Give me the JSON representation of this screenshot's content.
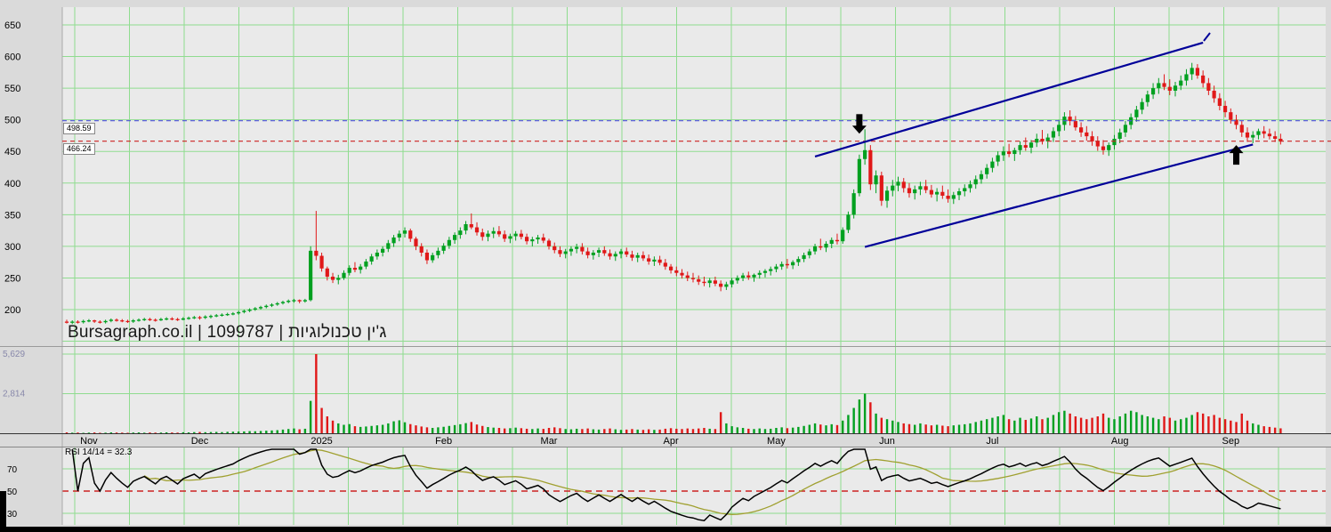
{
  "watermark": "Bursagraph.co.il | 1099787 | ג'ין טכנולוגיות",
  "colors": {
    "axis_bg": "#dadada",
    "plot_bg": "#eaeaea",
    "grid": "#8fdc8f",
    "up": "#00a020",
    "down": "#e01818",
    "vol_label": "#8888aa",
    "rsi_ma": "#a0a030",
    "rsi_mid": "#cc2222"
  },
  "price_lines": [
    {
      "label": "498.59",
      "price": 498.59,
      "color": "#5050dd"
    },
    {
      "label": "466.24",
      "price": 466.24,
      "color": "#cc2222"
    }
  ],
  "chart_data": {
    "type": "candlestick",
    "title": "",
    "price_axis": {
      "ticks": [
        650,
        600,
        550,
        500,
        450,
        400,
        350,
        300,
        250,
        200
      ],
      "ylim": [
        150,
        678
      ]
    },
    "x_labels": [
      {
        "label": "Nov",
        "index": 4
      },
      {
        "label": "Dec",
        "index": 24
      },
      {
        "label": "2025",
        "index": 46
      },
      {
        "label": "Feb",
        "index": 68
      },
      {
        "label": "Mar",
        "index": 87
      },
      {
        "label": "Apr",
        "index": 109
      },
      {
        "label": "May",
        "index": 128
      },
      {
        "label": "Jun",
        "index": 148
      },
      {
        "label": "Jul",
        "index": 167
      },
      {
        "label": "Aug",
        "index": 190
      },
      {
        "label": "Sep",
        "index": 210
      }
    ],
    "volume_axis": {
      "ticks": [
        {
          "label": "5,629",
          "value": 5629
        },
        {
          "label": "2,814",
          "value": 2814
        }
      ],
      "max": 5900
    },
    "rsi": {
      "label": "RSI 14/14 = 32.3",
      "period": 14,
      "smoothing": 14,
      "last_value": 32.3,
      "ticks": [
        70,
        50,
        30
      ],
      "midline": 50
    },
    "trend_channel": {
      "color": "#000099",
      "upper": {
        "i1": 135,
        "p1": 442,
        "i2": 205,
        "p2": 622
      },
      "lower": {
        "i1": 144,
        "p1": 299,
        "i2": 214,
        "p2": 461
      }
    },
    "arrows": [
      {
        "index": 143,
        "dir": "down",
        "tip_price": 478
      },
      {
        "index": 211,
        "dir": "up",
        "tip_price": 460
      }
    ],
    "candles": [
      [
        181,
        184,
        178,
        180
      ],
      [
        180,
        183,
        177,
        181
      ],
      [
        181,
        183,
        178,
        180
      ],
      [
        180,
        184,
        178,
        182
      ],
      [
        182,
        185,
        180,
        183
      ],
      [
        183,
        184,
        179,
        181
      ],
      [
        181,
        183,
        178,
        180
      ],
      [
        180,
        184,
        178,
        182
      ],
      [
        182,
        186,
        180,
        184
      ],
      [
        184,
        186,
        181,
        183
      ],
      [
        183,
        185,
        180,
        182
      ],
      [
        182,
        184,
        179,
        181
      ],
      [
        181,
        185,
        179,
        183
      ],
      [
        183,
        186,
        181,
        184
      ],
      [
        184,
        187,
        182,
        185
      ],
      [
        185,
        187,
        182,
        184
      ],
      [
        184,
        186,
        181,
        183
      ],
      [
        183,
        187,
        182,
        185
      ],
      [
        185,
        188,
        183,
        186
      ],
      [
        186,
        188,
        183,
        185
      ],
      [
        185,
        187,
        182,
        184
      ],
      [
        184,
        188,
        183,
        186
      ],
      [
        186,
        189,
        184,
        187
      ],
      [
        187,
        190,
        185,
        188
      ],
      [
        188,
        190,
        184,
        187
      ],
      [
        187,
        191,
        185,
        189
      ],
      [
        189,
        192,
        186,
        190
      ],
      [
        190,
        193,
        188,
        191
      ],
      [
        191,
        194,
        189,
        192
      ],
      [
        192,
        195,
        190,
        193
      ],
      [
        193,
        196,
        191,
        194
      ],
      [
        194,
        198,
        192,
        196
      ],
      [
        196,
        200,
        194,
        198
      ],
      [
        198,
        202,
        196,
        200
      ],
      [
        200,
        204,
        198,
        202
      ],
      [
        202,
        206,
        200,
        204
      ],
      [
        204,
        208,
        202,
        206
      ],
      [
        206,
        210,
        204,
        208
      ],
      [
        208,
        212,
        206,
        210
      ],
      [
        210,
        214,
        208,
        212
      ],
      [
        212,
        216,
        210,
        214
      ],
      [
        214,
        217,
        211,
        215
      ],
      [
        215,
        216,
        210,
        213
      ],
      [
        213,
        217,
        211,
        215
      ],
      [
        215,
        300,
        213,
        293
      ],
      [
        293,
        356,
        278,
        285
      ],
      [
        285,
        290,
        260,
        265
      ],
      [
        265,
        268,
        246,
        252
      ],
      [
        252,
        258,
        242,
        247
      ],
      [
        247,
        255,
        240,
        250
      ],
      [
        250,
        262,
        247,
        258
      ],
      [
        258,
        270,
        254,
        266
      ],
      [
        266,
        275,
        259,
        263
      ],
      [
        263,
        272,
        257,
        268
      ],
      [
        268,
        280,
        264,
        276
      ],
      [
        276,
        288,
        271,
        284
      ],
      [
        284,
        295,
        279,
        290
      ],
      [
        290,
        300,
        284,
        296
      ],
      [
        296,
        310,
        291,
        305
      ],
      [
        305,
        318,
        299,
        314
      ],
      [
        314,
        325,
        308,
        320
      ],
      [
        320,
        330,
        314,
        325
      ],
      [
        325,
        328,
        307,
        312
      ],
      [
        312,
        315,
        294,
        300
      ],
      [
        300,
        305,
        284,
        290
      ],
      [
        290,
        295,
        272,
        278
      ],
      [
        278,
        290,
        274,
        286
      ],
      [
        286,
        298,
        281,
        293
      ],
      [
        293,
        305,
        288,
        301
      ],
      [
        301,
        315,
        296,
        310
      ],
      [
        310,
        322,
        304,
        318
      ],
      [
        318,
        330,
        312,
        325
      ],
      [
        325,
        340,
        319,
        335
      ],
      [
        335,
        352,
        327,
        330
      ],
      [
        330,
        338,
        317,
        322
      ],
      [
        322,
        328,
        309,
        315
      ],
      [
        315,
        325,
        308,
        320
      ],
      [
        320,
        330,
        313,
        324
      ],
      [
        324,
        332,
        315,
        319
      ],
      [
        319,
        325,
        307,
        312
      ],
      [
        312,
        320,
        305,
        316
      ],
      [
        316,
        324,
        309,
        320
      ],
      [
        320,
        326,
        311,
        315
      ],
      [
        315,
        320,
        303,
        308
      ],
      [
        308,
        315,
        300,
        311
      ],
      [
        311,
        318,
        304,
        314
      ],
      [
        314,
        320,
        305,
        309
      ],
      [
        309,
        312,
        295,
        300
      ],
      [
        300,
        306,
        289,
        294
      ],
      [
        294,
        300,
        283,
        288
      ],
      [
        288,
        296,
        281,
        292
      ],
      [
        292,
        300,
        285,
        296
      ],
      [
        296,
        304,
        289,
        299
      ],
      [
        299,
        305,
        287,
        292
      ],
      [
        292,
        298,
        281,
        286
      ],
      [
        286,
        294,
        279,
        290
      ],
      [
        290,
        298,
        283,
        294
      ],
      [
        294,
        300,
        285,
        289
      ],
      [
        289,
        295,
        279,
        284
      ],
      [
        284,
        292,
        277,
        288
      ],
      [
        288,
        296,
        281,
        292
      ],
      [
        292,
        298,
        283,
        287
      ],
      [
        287,
        293,
        277,
        282
      ],
      [
        282,
        290,
        275,
        286
      ],
      [
        286,
        292,
        277,
        281
      ],
      [
        281,
        287,
        271,
        276
      ],
      [
        276,
        284,
        269,
        279
      ],
      [
        279,
        285,
        270,
        274
      ],
      [
        274,
        280,
        263,
        268
      ],
      [
        268,
        272,
        257,
        262
      ],
      [
        262,
        268,
        253,
        258
      ],
      [
        258,
        264,
        249,
        254
      ],
      [
        254,
        260,
        245,
        250
      ],
      [
        250,
        258,
        243,
        248
      ],
      [
        248,
        254,
        239,
        244
      ],
      [
        244,
        252,
        237,
        242
      ],
      [
        242,
        250,
        235,
        246
      ],
      [
        246,
        252,
        237,
        241
      ],
      [
        241,
        246,
        229,
        236
      ],
      [
        236,
        244,
        231,
        240
      ],
      [
        240,
        250,
        235,
        246
      ],
      [
        246,
        254,
        241,
        250
      ],
      [
        250,
        258,
        245,
        254
      ],
      [
        254,
        260,
        247,
        251
      ],
      [
        251,
        257,
        244,
        255
      ],
      [
        255,
        262,
        249,
        258
      ],
      [
        258,
        264,
        251,
        261
      ],
      [
        261,
        268,
        254,
        264
      ],
      [
        264,
        272,
        259,
        268
      ],
      [
        268,
        276,
        263,
        272
      ],
      [
        272,
        280,
        265,
        270
      ],
      [
        270,
        278,
        264,
        275
      ],
      [
        275,
        284,
        269,
        280
      ],
      [
        280,
        290,
        275,
        286
      ],
      [
        286,
        296,
        281,
        292
      ],
      [
        292,
        304,
        287,
        300
      ],
      [
        300,
        312,
        294,
        298
      ],
      [
        298,
        308,
        291,
        304
      ],
      [
        304,
        314,
        297,
        310
      ],
      [
        310,
        320,
        303,
        308
      ],
      [
        308,
        330,
        304,
        326
      ],
      [
        326,
        355,
        321,
        350
      ],
      [
        350,
        390,
        344,
        384
      ],
      [
        384,
        445,
        379,
        438
      ],
      [
        438,
        485,
        429,
        452
      ],
      [
        452,
        460,
        389,
        398
      ],
      [
        398,
        420,
        384,
        412
      ],
      [
        412,
        418,
        364,
        372
      ],
      [
        372,
        395,
        361,
        388
      ],
      [
        388,
        405,
        379,
        396
      ],
      [
        396,
        410,
        387,
        402
      ],
      [
        402,
        408,
        385,
        392
      ],
      [
        392,
        400,
        377,
        384
      ],
      [
        384,
        396,
        374,
        390
      ],
      [
        390,
        402,
        381,
        395
      ],
      [
        395,
        405,
        384,
        389
      ],
      [
        389,
        397,
        377,
        382
      ],
      [
        382,
        392,
        371,
        386
      ],
      [
        386,
        396,
        375,
        380
      ],
      [
        380,
        390,
        369,
        375
      ],
      [
        375,
        386,
        367,
        381
      ],
      [
        381,
        392,
        373,
        387
      ],
      [
        387,
        398,
        379,
        392
      ],
      [
        392,
        404,
        385,
        398
      ],
      [
        398,
        412,
        391,
        406
      ],
      [
        406,
        420,
        399,
        414
      ],
      [
        414,
        430,
        407,
        424
      ],
      [
        424,
        440,
        417,
        434
      ],
      [
        434,
        450,
        427,
        444
      ],
      [
        444,
        458,
        435,
        450
      ],
      [
        450,
        462,
        441,
        446
      ],
      [
        446,
        456,
        435,
        452
      ],
      [
        452,
        466,
        445,
        460
      ],
      [
        460,
        472,
        451,
        456
      ],
      [
        456,
        468,
        447,
        464
      ],
      [
        464,
        478,
        457,
        470
      ],
      [
        470,
        484,
        461,
        466
      ],
      [
        466,
        478,
        455,
        472
      ],
      [
        472,
        488,
        465,
        482
      ],
      [
        482,
        500,
        474,
        492
      ],
      [
        492,
        512,
        483,
        505
      ],
      [
        505,
        515,
        491,
        498
      ],
      [
        498,
        506,
        483,
        488
      ],
      [
        488,
        496,
        473,
        480
      ],
      [
        480,
        490,
        467,
        474
      ],
      [
        474,
        482,
        459,
        466
      ],
      [
        466,
        474,
        451,
        458
      ],
      [
        458,
        468,
        445,
        452
      ],
      [
        452,
        464,
        443,
        460
      ],
      [
        460,
        476,
        453,
        470
      ],
      [
        470,
        486,
        463,
        480
      ],
      [
        480,
        498,
        473,
        492
      ],
      [
        492,
        510,
        485,
        504
      ],
      [
        504,
        522,
        497,
        516
      ],
      [
        516,
        534,
        509,
        528
      ],
      [
        528,
        546,
        521,
        540
      ],
      [
        540,
        558,
        533,
        550
      ],
      [
        550,
        566,
        541,
        558
      ],
      [
        558,
        572,
        547,
        552
      ],
      [
        552,
        564,
        539,
        546
      ],
      [
        546,
        560,
        537,
        554
      ],
      [
        554,
        570,
        547,
        562
      ],
      [
        562,
        580,
        554,
        572
      ],
      [
        572,
        590,
        563,
        582
      ],
      [
        582,
        588,
        565,
        570
      ],
      [
        570,
        578,
        551,
        558
      ],
      [
        558,
        566,
        539,
        546
      ],
      [
        546,
        554,
        527,
        534
      ],
      [
        534,
        542,
        515,
        522
      ],
      [
        522,
        530,
        504,
        512
      ],
      [
        512,
        518,
        494,
        500
      ],
      [
        500,
        508,
        485,
        492
      ],
      [
        492,
        498,
        473,
        480
      ],
      [
        480,
        488,
        465,
        472
      ],
      [
        472,
        482,
        463,
        476
      ],
      [
        476,
        486,
        469,
        482
      ],
      [
        482,
        490,
        471,
        478
      ],
      [
        478,
        486,
        469,
        474
      ],
      [
        474,
        482,
        465,
        470
      ],
      [
        470,
        478,
        461,
        466
      ]
    ],
    "volumes": [
      60,
      40,
      50,
      30,
      45,
      55,
      35,
      40,
      60,
      50,
      45,
      35,
      50,
      60,
      40,
      55,
      45,
      50,
      65,
      55,
      45,
      70,
      60,
      80,
      90,
      75,
      85,
      95,
      80,
      100,
      110,
      120,
      130,
      150,
      140,
      160,
      180,
      200,
      220,
      260,
      300,
      340,
      280,
      320,
      2300,
      5629,
      1800,
      1200,
      900,
      700,
      600,
      650,
      500,
      450,
      480,
      520,
      560,
      600,
      700,
      850,
      920,
      780,
      650,
      560,
      480,
      420,
      380,
      420,
      460,
      520,
      580,
      640,
      720,
      800,
      620,
      520,
      440,
      400,
      380,
      340,
      360,
      400,
      360,
      320,
      300,
      340,
      310,
      380,
      420,
      360,
      300,
      280,
      320,
      300,
      340,
      280,
      260,
      300,
      340,
      280,
      240,
      260,
      300,
      260,
      240,
      280,
      240,
      260,
      320,
      360,
      320,
      300,
      340,
      300,
      340,
      380,
      320,
      300,
      1500,
      700,
      500,
      420,
      380,
      320,
      300,
      340,
      300,
      320,
      380,
      420,
      360,
      400,
      450,
      520,
      600,
      700,
      620,
      560,
      640,
      580,
      900,
      1300,
      1800,
      2400,
      2814,
      2200,
      1400,
      1100,
      1000,
      900,
      800,
      700,
      650,
      600,
      700,
      620,
      560,
      600,
      540,
      500,
      560,
      600,
      640,
      700,
      800,
      900,
      1000,
      1100,
      1200,
      1300,
      1000,
      900,
      1100,
      950,
      1050,
      1200,
      1000,
      1100,
      1300,
      1500,
      1600,
      1400,
      1200,
      1100,
      1000,
      1100,
      1200,
      1400,
      1100,
      1000,
      1200,
      1400,
      1600,
      1500,
      1300,
      1200,
      1100,
      1000,
      1200,
      1100,
      900,
      1000,
      1100,
      1300,
      1500,
      1400,
      1200,
      1300,
      1100,
      1000,
      900,
      800,
      1400,
      900,
      700,
      600,
      500,
      450,
      400,
      350
    ]
  }
}
